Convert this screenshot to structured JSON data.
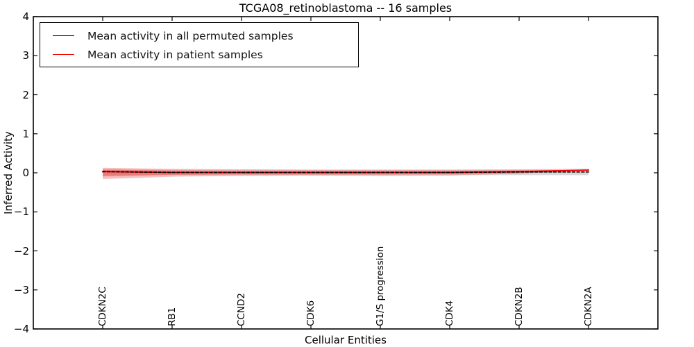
{
  "figure": {
    "title": "TCGA08_retinoblastoma -- 16 samples"
  },
  "chart_data": {
    "type": "line",
    "title": "TCGA08_retinoblastoma -- 16 samples",
    "xlabel": "Cellular Entities",
    "ylabel": "Inferred Activity",
    "ylim": [
      -4,
      4
    ],
    "ytick_values": [
      4,
      3,
      2,
      1,
      0,
      -1,
      -2,
      -3,
      -4
    ],
    "ytick_labels": [
      "4",
      "3",
      "2",
      "1",
      "0",
      "−1",
      "−2",
      "−3",
      "−4"
    ],
    "categories": [
      "CDKN2C",
      "RB1",
      "CCND2",
      "CDK6",
      "G1/S progression",
      "CDK4",
      "CDKN2B",
      "CDKN2A"
    ],
    "grid": false,
    "legend_position": "upper left",
    "frame_color": "#000000",
    "series": [
      {
        "name": "Mean activity in all permuted samples",
        "color": "#000000",
        "line_style": "solid (appears dashed where overlapped by patient line)",
        "values": [
          0.03,
          0.01,
          0.01,
          0.01,
          0.01,
          0.01,
          0.02,
          0.02
        ],
        "band": {
          "color": "#bbbbbb",
          "upper": [
            0.1,
            0.08,
            0.08,
            0.08,
            0.08,
            0.08,
            0.09,
            0.11
          ],
          "lower": [
            -0.06,
            -0.06,
            -0.06,
            -0.06,
            -0.06,
            -0.06,
            -0.06,
            -0.06
          ]
        }
      },
      {
        "name": "Mean activity in patient samples",
        "color": "#f00000",
        "line_style": "solid",
        "values": [
          0.03,
          0.01,
          0.01,
          0.01,
          0.01,
          0.01,
          0.03,
          0.07
        ],
        "band_outer": {
          "color": "#f08080",
          "upper": [
            0.13,
            0.1,
            0.09,
            0.08,
            0.08,
            0.08,
            0.08,
            0.08
          ],
          "lower": [
            -0.16,
            -0.1,
            -0.08,
            -0.07,
            -0.08,
            -0.07,
            -0.02,
            0.06
          ]
        },
        "band_inner": {
          "color": "#e85555",
          "upper": [
            0.08,
            0.06,
            0.05,
            0.05,
            0.05,
            0.05,
            0.06,
            0.08
          ],
          "lower": [
            -0.09,
            -0.05,
            -0.04,
            -0.04,
            -0.04,
            -0.03,
            -0.01,
            0.06
          ]
        }
      }
    ]
  }
}
